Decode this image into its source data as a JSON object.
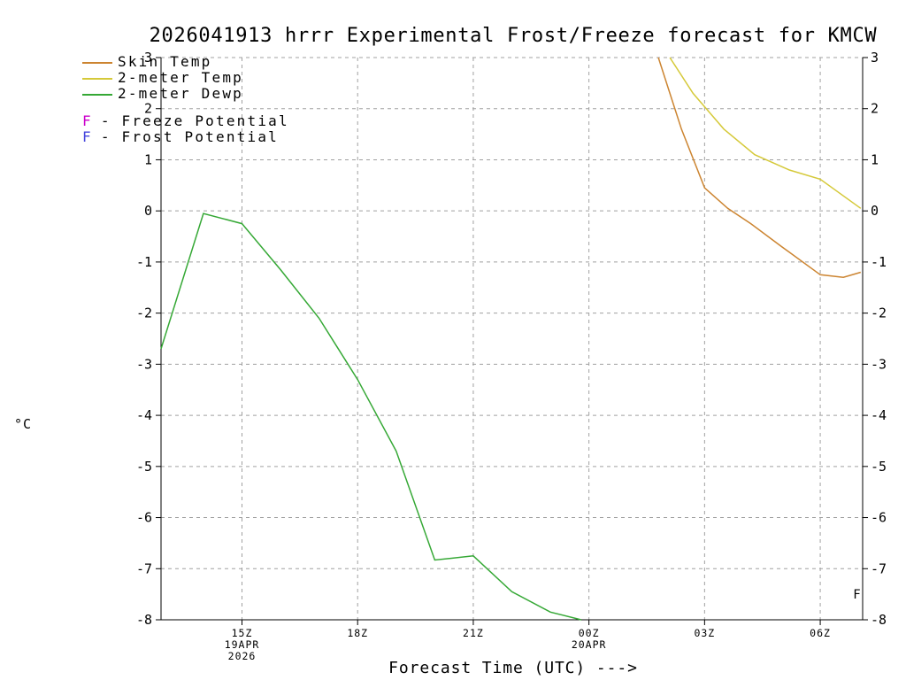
{
  "title": "2026041913 hrrr Experimental Frost/Freeze forecast for KMCW",
  "axes": {
    "ylabel": "°C",
    "xlabel": "Forecast Time (UTC) --->"
  },
  "legend": {
    "series": [
      {
        "label": "Skin Temp",
        "color": "#cc8430"
      },
      {
        "label": "2-meter Temp",
        "color": "#d5c939"
      },
      {
        "label": "2-meter Dewp",
        "color": "#35a835"
      }
    ],
    "flags": [
      {
        "symbol": "F",
        "symbol_color": "#cc00cc",
        "label": "- Freeze Potential"
      },
      {
        "symbol": "F",
        "symbol_color": "#4646dd",
        "label": "- Frost Potential"
      }
    ]
  },
  "chart_data": {
    "type": "line",
    "title": "2026041913 hrrr Experimental Frost/Freeze forecast for KMCW",
    "xlabel": "Forecast Time (UTC) --->",
    "ylabel": "°C",
    "ylim": [
      -8,
      3
    ],
    "xlim": [
      12.9,
      31.1
    ],
    "grid": true,
    "grid_color": "#a0a0a0",
    "axis_color": "#000000",
    "yticks": [
      3,
      2,
      1,
      0,
      -1,
      -2,
      -3,
      -4,
      -5,
      -6,
      -7,
      -8
    ],
    "xticks": [
      {
        "hour": 15,
        "label": "15Z",
        "sub": [
          "19APR",
          "2026"
        ]
      },
      {
        "hour": 18,
        "label": "18Z",
        "sub": []
      },
      {
        "hour": 21,
        "label": "21Z",
        "sub": []
      },
      {
        "hour": 24,
        "label": "00Z",
        "sub": [
          "20APR"
        ]
      },
      {
        "hour": 27,
        "label": "03Z",
        "sub": []
      },
      {
        "hour": 30,
        "label": "06Z",
        "sub": []
      }
    ],
    "series": [
      {
        "name": "Skin Temp",
        "color": "#cc8430",
        "points": [
          [
            25.8,
            3.0
          ],
          [
            26.4,
            1.6
          ],
          [
            27.0,
            0.45
          ],
          [
            27.6,
            0.05
          ],
          [
            28.2,
            -0.25
          ],
          [
            29.0,
            -0.7
          ],
          [
            30.0,
            -1.25
          ],
          [
            30.6,
            -1.3
          ],
          [
            31.05,
            -1.2
          ]
        ]
      },
      {
        "name": "2-meter Temp",
        "color": "#d5c939",
        "points": [
          [
            26.1,
            3.0
          ],
          [
            26.7,
            2.3
          ],
          [
            27.5,
            1.6
          ],
          [
            28.3,
            1.1
          ],
          [
            29.2,
            0.8
          ],
          [
            30.0,
            0.62
          ],
          [
            31.05,
            0.05
          ]
        ]
      },
      {
        "name": "2-meter Dewp",
        "color": "#35a835",
        "points": [
          [
            12.9,
            -2.7
          ],
          [
            14.0,
            -0.05
          ],
          [
            15.0,
            -0.25
          ],
          [
            16.0,
            -1.15
          ],
          [
            17.0,
            -2.1
          ],
          [
            18.0,
            -3.3
          ],
          [
            19.0,
            -4.7
          ],
          [
            20.0,
            -6.83
          ],
          [
            21.0,
            -6.75
          ],
          [
            22.0,
            -7.45
          ],
          [
            23.0,
            -7.85
          ],
          [
            23.8,
            -8.0
          ]
        ]
      }
    ],
    "markers": [
      {
        "x": 30.95,
        "y": -7.5,
        "label": "F",
        "color": "#cc00cc"
      }
    ]
  }
}
